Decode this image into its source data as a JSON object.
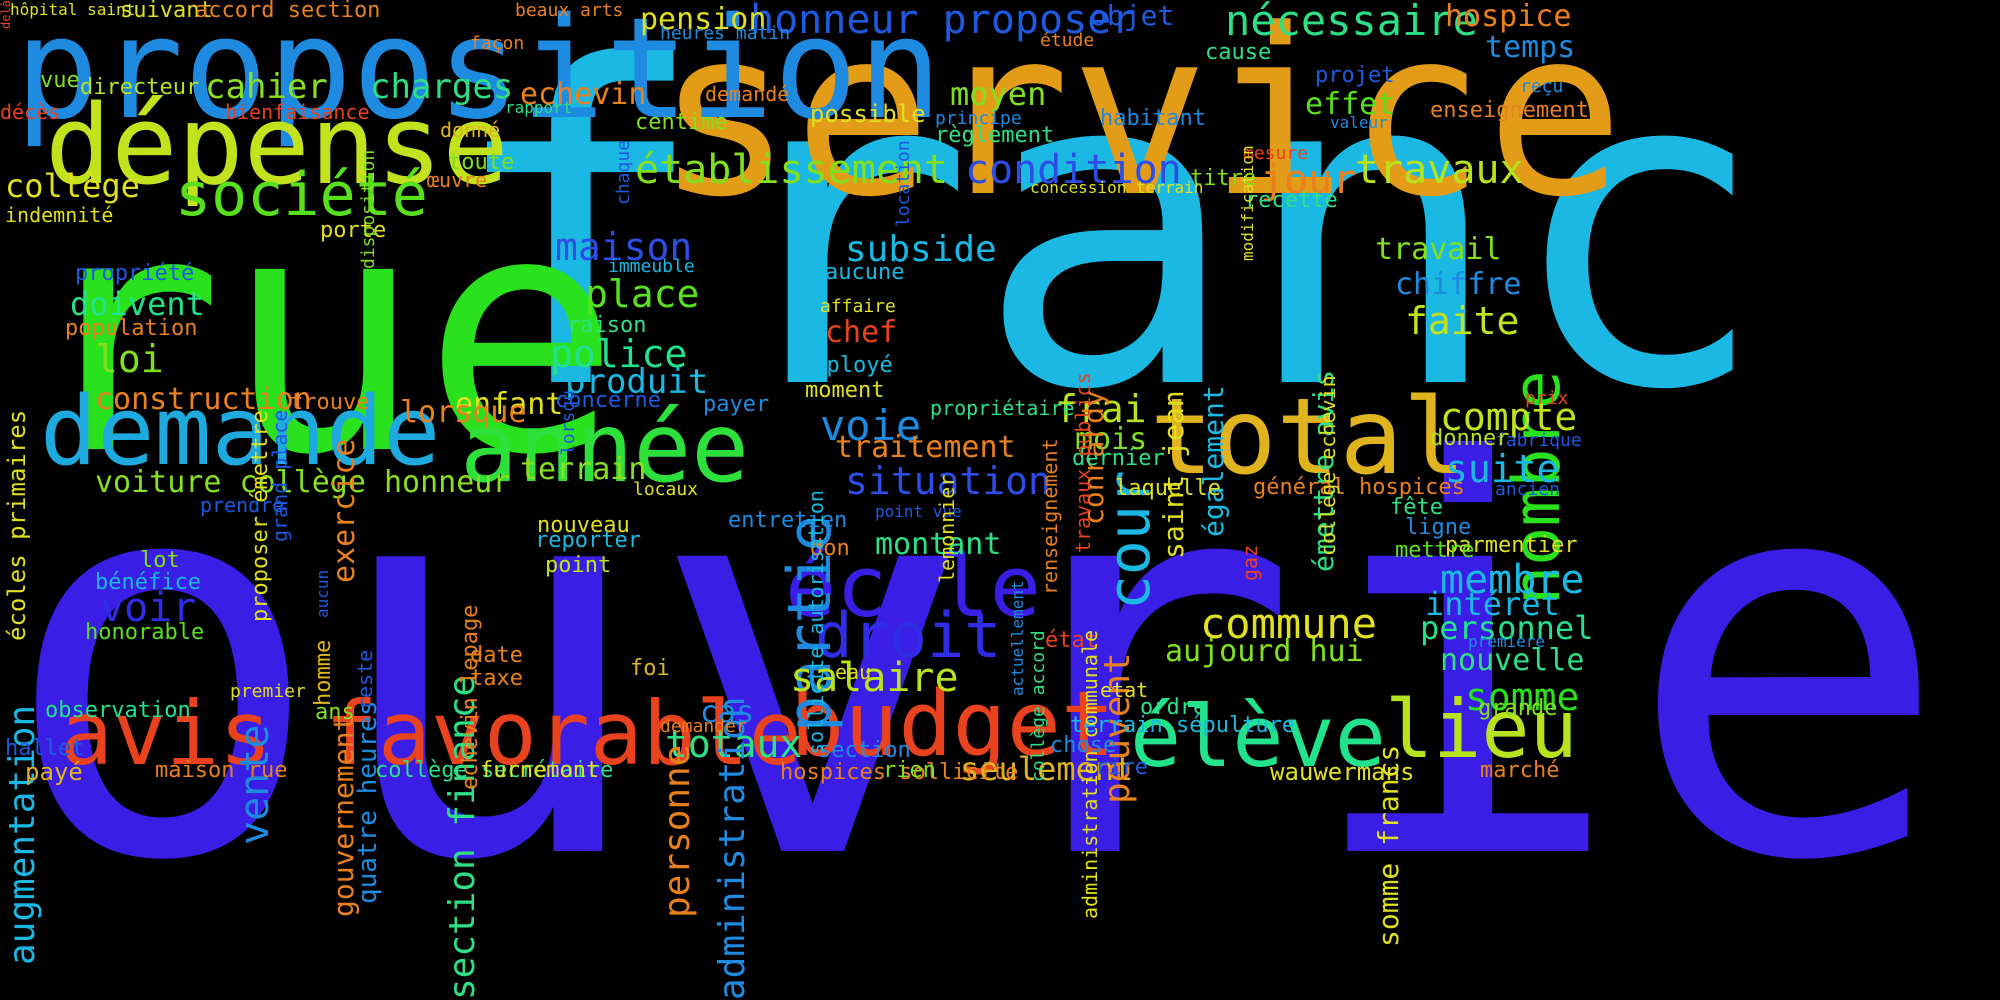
{
  "words": [
    {
      "text": "ouvrier",
      "color": "#3a1ee6",
      "v": 0
    },
    {
      "text": "franc",
      "color": "#1ab8e2",
      "v": 0
    },
    {
      "text": "rue",
      "color": "#29e11c",
      "v": 0
    },
    {
      "text": "service",
      "color": "#e29c18",
      "v": 0
    },
    {
      "text": "proposition",
      "color": "#1e8be0",
      "v": 0
    },
    {
      "text": "dépense",
      "color": "#c2e21e",
      "v": 0
    },
    {
      "text": "demande",
      "color": "#1eaadf",
      "v": 0
    },
    {
      "text": "année",
      "color": "#2ee03c",
      "v": 0
    },
    {
      "text": "total",
      "color": "#e0b41e",
      "v": 0
    },
    {
      "text": "avis favorable",
      "color": "#e8421e",
      "v": 0
    },
    {
      "text": "budget",
      "color": "#e8421e",
      "v": 0
    },
    {
      "text": "lieu",
      "color": "#b8e21e",
      "v": 0
    },
    {
      "text": "élève",
      "color": "#23e28c",
      "v": 0
    },
    {
      "text": "école",
      "color": "#3a1ee6",
      "v": 0
    },
    {
      "text": "droit",
      "color": "#2f2ee6",
      "v": 0
    },
    {
      "text": "partie",
      "color": "#1e8be0",
      "v": 1
    },
    {
      "text": "cour",
      "color": "#1ab8e2",
      "v": 1
    },
    {
      "text": "nombre",
      "color": "#29e11c",
      "v": 1
    },
    {
      "text": "société",
      "color": "#58e01c",
      "v": 0
    },
    {
      "text": "nécessaire",
      "color": "#2ee085",
      "v": 0
    },
    {
      "text": "honneur proposer",
      "color": "#1e5ae0",
      "v": 0
    },
    {
      "text": "établissement",
      "color": "#80e01e",
      "v": 0
    },
    {
      "text": "condition",
      "color": "#2d4ee6",
      "v": 0
    },
    {
      "text": "travaux",
      "color": "#b8e21e",
      "v": 0
    },
    {
      "text": "jour",
      "color": "#e8801e",
      "v": 0
    },
    {
      "text": "cahier",
      "color": "#88e01e",
      "v": 0
    },
    {
      "text": "charges",
      "color": "#2ee085",
      "v": 0
    },
    {
      "text": "collège",
      "color": "#e0e01e",
      "v": 0
    },
    {
      "text": "maison",
      "color": "#2d4ee6",
      "v": 0
    },
    {
      "text": "subside",
      "color": "#1ab8e2",
      "v": 0
    },
    {
      "text": "place",
      "color": "#58e01c",
      "v": 0
    },
    {
      "text": "police",
      "color": "#23e28c",
      "v": 0
    },
    {
      "text": "produit",
      "color": "#1ab8e2",
      "v": 0
    },
    {
      "text": "loi",
      "color": "#80e01e",
      "v": 0
    },
    {
      "text": "doivent",
      "color": "#23e28c",
      "v": 0
    },
    {
      "text": "construction",
      "color": "#e8801e",
      "v": 0
    },
    {
      "text": "voiture collège honneur",
      "color": "#88e01e",
      "v": 0
    },
    {
      "text": "voie",
      "color": "#1e8be0",
      "v": 0
    },
    {
      "text": "situation",
      "color": "#2d4ee6",
      "v": 0
    },
    {
      "text": "frai",
      "color": "#b8e21e",
      "v": 0
    },
    {
      "text": "compte",
      "color": "#c2e21e",
      "v": 0
    },
    {
      "text": "suite",
      "color": "#1ab8e2",
      "v": 0
    },
    {
      "text": "faite",
      "color": "#c2e21e",
      "v": 0
    },
    {
      "text": "chiffre",
      "color": "#1e8be0",
      "v": 0
    },
    {
      "text": "travail",
      "color": "#80e01e",
      "v": 0
    },
    {
      "text": "temps",
      "color": "#1e8be0",
      "v": 0
    },
    {
      "text": "hospice",
      "color": "#e8801e",
      "v": 0
    },
    {
      "text": "pension",
      "color": "#e0e01e",
      "v": 0
    },
    {
      "text": "moyen",
      "color": "#80e01e",
      "v": 0
    },
    {
      "text": "effet",
      "color": "#58e01c",
      "v": 0
    },
    {
      "text": "echevin",
      "color": "#e8801e",
      "v": 0
    },
    {
      "text": "chef",
      "color": "#e8421e",
      "v": 0
    },
    {
      "text": "traitement",
      "color": "#e8801e",
      "v": 0
    },
    {
      "text": "mois",
      "color": "#80e01e",
      "v": 0
    },
    {
      "text": "enfant",
      "color": "#e0e01e",
      "v": 0
    },
    {
      "text": "terrain",
      "color": "#88e01e",
      "v": 0
    },
    {
      "text": "montant",
      "color": "#2ee085",
      "v": 0
    },
    {
      "text": "commune",
      "color": "#e0e01e",
      "v": 0
    },
    {
      "text": "salaire",
      "color": "#b8e21e",
      "v": 0
    },
    {
      "text": "membre",
      "color": "#1ab8e2",
      "v": 0
    },
    {
      "text": "intérêt",
      "color": "#1ab8e2",
      "v": 0
    },
    {
      "text": "personnel",
      "color": "#23e28c",
      "v": 0
    },
    {
      "text": "nouvelle",
      "color": "#2ee085",
      "v": 0
    },
    {
      "text": "somme",
      "color": "#29e11c",
      "v": 0
    },
    {
      "text": "totaux",
      "color": "#2ee085",
      "v": 0
    },
    {
      "text": "cas",
      "color": "#1e8be0",
      "v": 0
    },
    {
      "text": "seulement",
      "color": "#e0b41e",
      "v": 0
    },
    {
      "text": "voir",
      "color": "#2f2ee6",
      "v": 0
    },
    {
      "text": "vente",
      "color": "#1e8be0",
      "v": 1
    },
    {
      "text": "augmentation",
      "color": "#1ab8e2",
      "v": 1
    },
    {
      "text": "exercice",
      "color": "#e8801e",
      "v": 1
    },
    {
      "text": "lorsque",
      "color": "#e8801e",
      "v": 0
    },
    {
      "text": "personne",
      "color": "#e8801e",
      "v": 1
    },
    {
      "text": "administration",
      "color": "#1e8be0",
      "v": 1
    },
    {
      "text": "section finance",
      "color": "#2ee085",
      "v": 1
    },
    {
      "text": "peuvent",
      "color": "#e8801e",
      "v": 1
    },
    {
      "text": "conrardy",
      "color": "#e8801e",
      "v": 1
    },
    {
      "text": "saint jean",
      "color": "#e0e01e",
      "v": 1
    },
    {
      "text": "également",
      "color": "#1ab8e2",
      "v": 1
    },
    {
      "text": "émettre avis",
      "color": "#2ee085",
      "v": 1
    },
    {
      "text": "somme francs",
      "color": "#e0e01e",
      "v": 1
    },
    {
      "text": "aujourd hui",
      "color": "#80e01e",
      "v": 0
    },
    {
      "text": "gouvernement",
      "color": "#e8801e",
      "v": 1
    },
    {
      "text": "quatre heures",
      "color": "#1e8be0",
      "v": 1
    },
    {
      "text": "hôpital saint",
      "color": "#e0e01e",
      "v": 0
    },
    {
      "text": "suivant",
      "color": "#e0e01e",
      "v": 0
    },
    {
      "text": "accord section",
      "color": "#e8801e",
      "v": 0
    },
    {
      "text": "beaux arts",
      "color": "#e8801e",
      "v": 0
    },
    {
      "text": "objet",
      "color": "#1e5ae0",
      "v": 0
    },
    {
      "text": "façon",
      "color": "#e8801e",
      "v": 0
    },
    {
      "text": "heures matin",
      "color": "#1e8be0",
      "v": 0
    },
    {
      "text": "étude",
      "color": "#e8801e",
      "v": 0
    },
    {
      "text": "cause",
      "color": "#2ee085",
      "v": 0
    },
    {
      "text": "projet",
      "color": "#1e5ae0",
      "v": 0
    },
    {
      "text": "reçu",
      "color": "#1e8be0",
      "v": 0
    },
    {
      "text": "vue",
      "color": "#80e01e",
      "v": 0
    },
    {
      "text": "directeur",
      "color": "#b8e21e",
      "v": 0
    },
    {
      "text": "décès",
      "color": "#e8421e",
      "v": 0
    },
    {
      "text": "bienfaisance",
      "color": "#e8421e",
      "v": 0
    },
    {
      "text": "rapport",
      "color": "#2ee085",
      "v": 0
    },
    {
      "text": "demandé",
      "color": "#e8801e",
      "v": 0
    },
    {
      "text": "centime",
      "color": "#80e01e",
      "v": 0
    },
    {
      "text": "possible",
      "color": "#e0e01e",
      "v": 0
    },
    {
      "text": "principe",
      "color": "#1e8be0",
      "v": 0
    },
    {
      "text": "règlement",
      "color": "#2ee085",
      "v": 0
    },
    {
      "text": "habitant",
      "color": "#1e8be0",
      "v": 0
    },
    {
      "text": "mesure",
      "color": "#e8421e",
      "v": 0
    },
    {
      "text": "valeur",
      "color": "#1e8be0",
      "v": 0
    },
    {
      "text": "enseignement",
      "color": "#e8801e",
      "v": 0
    },
    {
      "text": "donné",
      "color": "#e0b41e",
      "v": 0
    },
    {
      "text": "toute",
      "color": "#80e01e",
      "v": 0
    },
    {
      "text": "œuvre",
      "color": "#e8801e",
      "v": 0
    },
    {
      "text": "concession terrain",
      "color": "#e0e01e",
      "v": 0
    },
    {
      "text": "titre",
      "color": "#80e01e",
      "v": 0
    },
    {
      "text": "recette",
      "color": "#2ee085",
      "v": 0
    },
    {
      "text": "indemnité",
      "color": "#e0e01e",
      "v": 0
    },
    {
      "text": "porte",
      "color": "#e0e01e",
      "v": 0
    },
    {
      "text": "propriété",
      "color": "#1e5ae0",
      "v": 0
    },
    {
      "text": "population",
      "color": "#e8801e",
      "v": 0
    },
    {
      "text": "immeuble",
      "color": "#1ab8e2",
      "v": 0
    },
    {
      "text": "aucune",
      "color": "#1ab8e2",
      "v": 0
    },
    {
      "text": "raison",
      "color": "#2ee085",
      "v": 0
    },
    {
      "text": "affaire",
      "color": "#e0e01e",
      "v": 0
    },
    {
      "text": "employé",
      "color": "#1ab8e2",
      "v": 0
    },
    {
      "text": "moment",
      "color": "#e0e01e",
      "v": 0
    },
    {
      "text": "propriétaire",
      "color": "#2ee085",
      "v": 0
    },
    {
      "text": "prix",
      "color": "#e8421e",
      "v": 0
    },
    {
      "text": "fabrique",
      "color": "#1e5ae0",
      "v": 0
    },
    {
      "text": "donner",
      "color": "#b8e21e",
      "v": 0
    },
    {
      "text": "trouve",
      "color": "#e8801e",
      "v": 0
    },
    {
      "text": "concerne",
      "color": "#1e5ae0",
      "v": 0
    },
    {
      "text": "payer",
      "color": "#1e8be0",
      "v": 0
    },
    {
      "text": "dernier",
      "color": "#2ee085",
      "v": 0
    },
    {
      "text": "laquelle",
      "color": "#e0e01e",
      "v": 0
    },
    {
      "text": "général hospices",
      "color": "#e8801e",
      "v": 0
    },
    {
      "text": "ancien",
      "color": "#1e5ae0",
      "v": 0
    },
    {
      "text": "prendre",
      "color": "#1e5ae0",
      "v": 0
    },
    {
      "text": "locaux",
      "color": "#e0e01e",
      "v": 0
    },
    {
      "text": "point vue",
      "color": "#1e5ae0",
      "v": 0
    },
    {
      "text": "fête",
      "color": "#2ee085",
      "v": 0
    },
    {
      "text": "ligne",
      "color": "#1e8be0",
      "v": 0
    },
    {
      "text": "parmentier",
      "color": "#e0e01e",
      "v": 0
    },
    {
      "text": "mettre",
      "color": "#58e01c",
      "v": 0
    },
    {
      "text": "lot",
      "color": "#80e01e",
      "v": 0
    },
    {
      "text": "bénéfice",
      "color": "#1ab8e2",
      "v": 0
    },
    {
      "text": "honorable",
      "color": "#58e01c",
      "v": 0
    },
    {
      "text": "nouveau",
      "color": "#e0e01e",
      "v": 0
    },
    {
      "text": "reporter",
      "color": "#1ab8e2",
      "v": 0
    },
    {
      "text": "point",
      "color": "#c2e21e",
      "v": 0
    },
    {
      "text": "don",
      "color": "#e8801e",
      "v": 0
    },
    {
      "text": "gaz",
      "color": "#e8421e",
      "v": 1
    },
    {
      "text": "première",
      "color": "#1e8be0",
      "v": 0
    },
    {
      "text": "date",
      "color": "#e8801e",
      "v": 0
    },
    {
      "text": "taxe",
      "color": "#e8801e",
      "v": 0
    },
    {
      "text": "foi",
      "color": "#e0b41e",
      "v": 0
    },
    {
      "text": "état",
      "color": "#e8421e",
      "v": 0
    },
    {
      "text": "eau",
      "color": "#e0e01e",
      "v": 0
    },
    {
      "text": "etat",
      "color": "#e0e01e",
      "v": 0
    },
    {
      "text": "ordre",
      "color": "#2ee085",
      "v": 0
    },
    {
      "text": "grande",
      "color": "#80e01e",
      "v": 0
    },
    {
      "text": "premier",
      "color": "#e0e01e",
      "v": 0
    },
    {
      "text": "ans",
      "color": "#80e01e",
      "v": 0
    },
    {
      "text": "observation",
      "color": "#23e28c",
      "v": 0
    },
    {
      "text": "hallet",
      "color": "#1e5ae0",
      "v": 0
    },
    {
      "text": "payé",
      "color": "#e0b41e",
      "v": 0
    },
    {
      "text": "maison rue",
      "color": "#e8801e",
      "v": 0
    },
    {
      "text": "collège secrétaire",
      "color": "#2ee085",
      "v": 0
    },
    {
      "text": "furnemont",
      "color": "#e0e01e",
      "v": 0
    },
    {
      "text": "hospices sollicite",
      "color": "#e8801e",
      "v": 0
    },
    {
      "text": "demander",
      "color": "#e8801e",
      "v": 0
    },
    {
      "text": "terrain sépulture",
      "color": "#1ab8e2",
      "v": 0
    },
    {
      "text": "chose",
      "color": "#1e8be0",
      "v": 0
    },
    {
      "text": "section",
      "color": "#1e8be0",
      "v": 0
    },
    {
      "text": "rien",
      "color": "#80e01e",
      "v": 0
    },
    {
      "text": "rire",
      "color": "#1e5ae0",
      "v": 0
    },
    {
      "text": "wauwermans",
      "color": "#e0e01e",
      "v": 0
    },
    {
      "text": "marché",
      "color": "#e8801e",
      "v": 0
    },
    {
      "text": "entretien",
      "color": "#1e8be0",
      "v": 0
    },
    {
      "text": "actuellement",
      "color": "#1e8be0",
      "v": 1
    },
    {
      "text": "écoles primaires",
      "color": "#e0e01e",
      "v": 1
    },
    {
      "text": "proposer émettre",
      "color": "#e0e01e",
      "v": 1
    },
    {
      "text": "grand place",
      "color": "#1e5ae0",
      "v": 1
    },
    {
      "text": "disposition",
      "color": "#80e01e",
      "v": 1
    },
    {
      "text": "location",
      "color": "#1e5ae0",
      "v": 1
    },
    {
      "text": "chaque",
      "color": "#1e5ae0",
      "v": 1
    },
    {
      "text": "lorsqu",
      "color": "#1e5ae0",
      "v": 1
    },
    {
      "text": "homme",
      "color": "#e0b41e",
      "v": 1
    },
    {
      "text": "aucun",
      "color": "#1e5ae0",
      "v": 1
    },
    {
      "text": "reste",
      "color": "#1e5ae0",
      "v": 1
    },
    {
      "text": "echevin lepage",
      "color": "#e8801e",
      "v": 1
    },
    {
      "text": "lemonnier",
      "color": "#e0e01e",
      "v": 1
    },
    {
      "text": "sollicite autorisation",
      "color": "#1ab8e2",
      "v": 1
    },
    {
      "text": "renseignement",
      "color": "#e8801e",
      "v": 1
    },
    {
      "text": "travaux publics",
      "color": "#e8421e",
      "v": 1
    },
    {
      "text": "collège accord",
      "color": "#2ee085",
      "v": 1
    },
    {
      "text": "administration communale",
      "color": "#e0e01e",
      "v": 1
    },
    {
      "text": "collège echevin",
      "color": "#e0e01e",
      "v": 1
    },
    {
      "text": "modification",
      "color": "#e0e01e",
      "v": 1
    },
    {
      "text": "delà",
      "color": "#e8421e",
      "v": 1
    }
  ]
}
